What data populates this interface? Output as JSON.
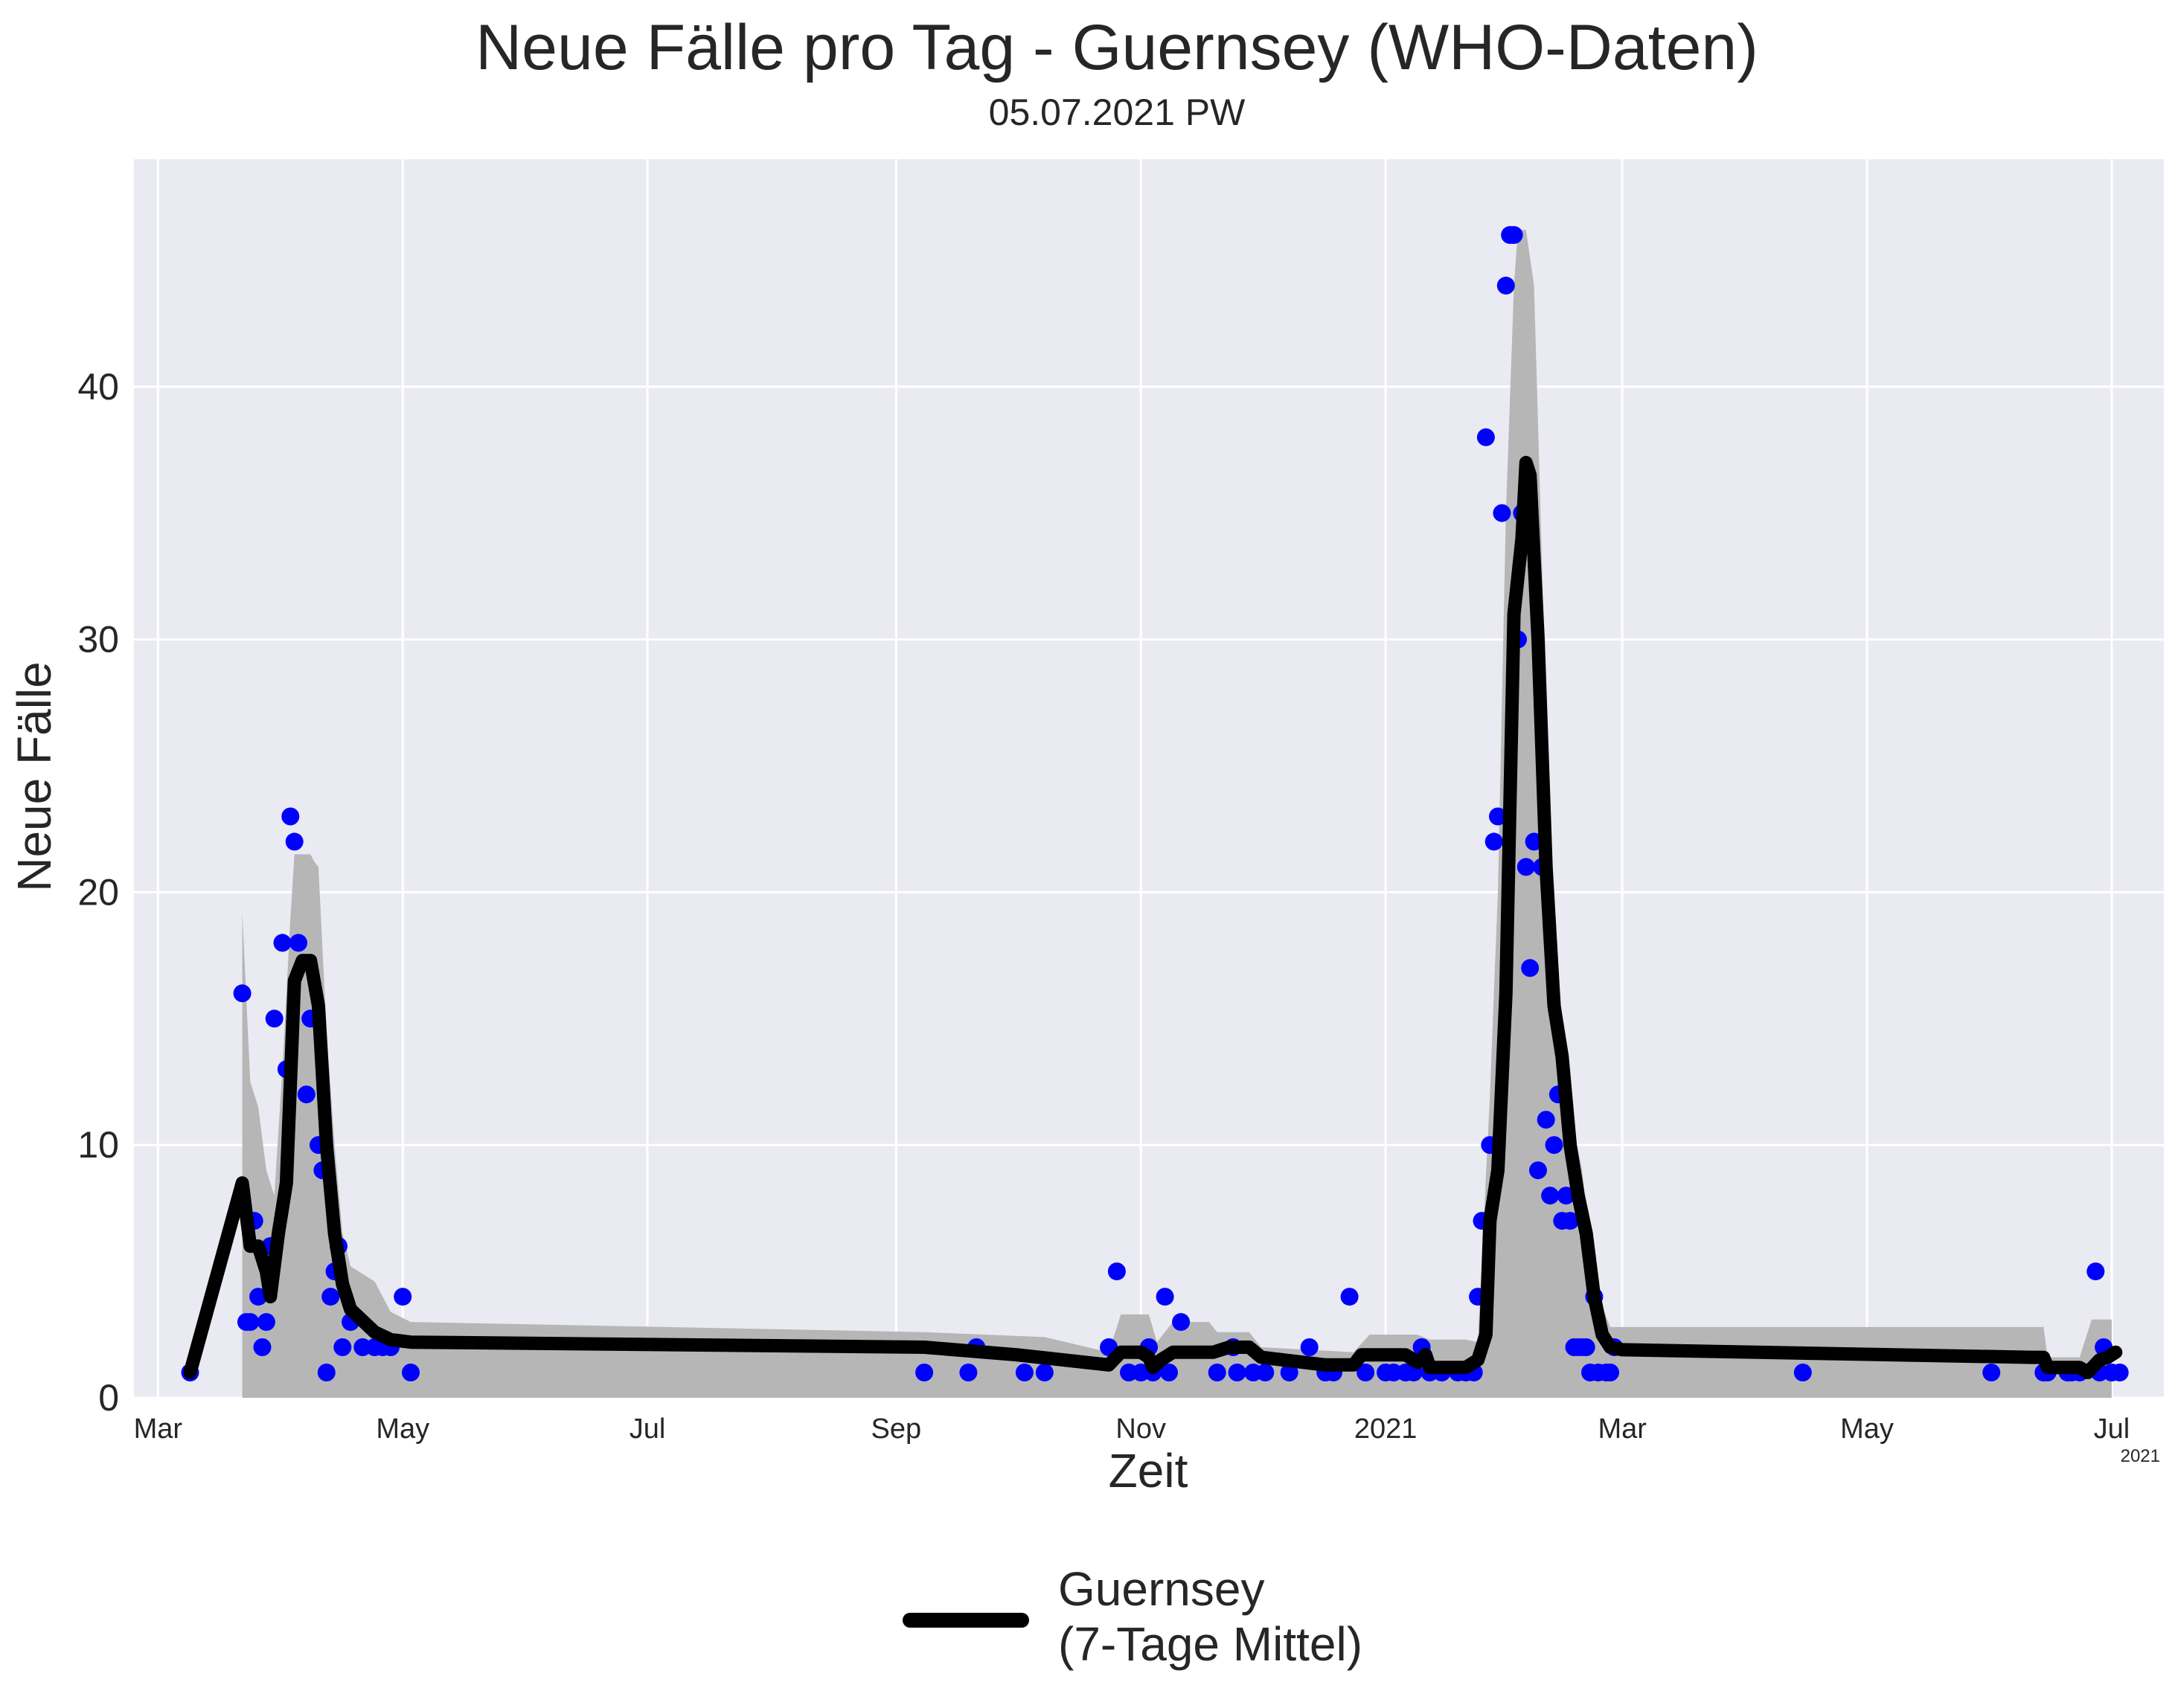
{
  "chart_data": {
    "type": "line",
    "title": "Neue Fälle pro Tag - Guernsey (WHO-Daten)",
    "subtitle": "05.07.2021 PW",
    "xlabel": "Zeit",
    "ylabel": "Neue Fälle",
    "x_offset_label": "2021",
    "xlim": [
      "2020-02-24",
      "2021-07-14"
    ],
    "ylim": [
      0,
      49
    ],
    "grid": true,
    "legend_position": "bottom-center",
    "x_ticks": [
      {
        "date": "2020-03-01",
        "label": "Mar"
      },
      {
        "date": "2020-05-01",
        "label": "May"
      },
      {
        "date": "2020-07-01",
        "label": "Jul"
      },
      {
        "date": "2020-09-01",
        "label": "Sep"
      },
      {
        "date": "2020-11-01",
        "label": "Nov"
      },
      {
        "date": "2021-01-01",
        "label": "2021"
      },
      {
        "date": "2021-03-01",
        "label": "Mar"
      },
      {
        "date": "2021-05-01",
        "label": "May"
      },
      {
        "date": "2021-07-01",
        "label": "Jul"
      }
    ],
    "y_ticks": [
      0,
      10,
      20,
      30,
      40
    ],
    "colors": {
      "background": "#eaeaf2",
      "grid": "#ffffff",
      "points": "#0000ff",
      "line": "#000000",
      "band": "#b3b3b3"
    },
    "series": [
      {
        "name": "Guernsey\n(7-Tage Mittel)",
        "kind": "line",
        "points": [
          [
            "2020-03-09",
            1
          ],
          [
            "2020-03-22",
            8.5
          ],
          [
            "2020-03-24",
            6
          ],
          [
            "2020-03-26",
            6
          ],
          [
            "2020-03-28",
            5
          ],
          [
            "2020-03-29",
            4
          ],
          [
            "2020-03-31",
            6.5
          ],
          [
            "2020-04-02",
            8.5
          ],
          [
            "2020-04-04",
            16.5
          ],
          [
            "2020-04-06",
            17.3
          ],
          [
            "2020-04-08",
            17.3
          ],
          [
            "2020-04-10",
            15.5
          ],
          [
            "2020-04-12",
            10
          ],
          [
            "2020-04-14",
            6.5
          ],
          [
            "2020-04-16",
            4.5
          ],
          [
            "2020-04-18",
            3.5
          ],
          [
            "2020-04-20",
            3.2
          ],
          [
            "2020-04-24",
            2.6
          ],
          [
            "2020-04-28",
            2.3
          ],
          [
            "2020-05-03",
            2.2
          ],
          [
            "2020-09-08",
            2.0
          ],
          [
            "2020-10-01",
            1.7
          ],
          [
            "2020-10-24",
            1.3
          ],
          [
            "2020-10-27",
            1.8
          ],
          [
            "2020-11-01",
            1.8
          ],
          [
            "2020-11-03",
            1.6
          ],
          [
            "2020-11-04",
            1.2
          ],
          [
            "2020-11-06",
            1.5
          ],
          [
            "2020-11-09",
            1.8
          ],
          [
            "2020-11-19",
            1.8
          ],
          [
            "2020-11-23",
            2.0
          ],
          [
            "2020-11-28",
            2.0
          ],
          [
            "2020-12-01",
            1.6
          ],
          [
            "2020-12-17",
            1.3
          ],
          [
            "2020-12-24",
            1.3
          ],
          [
            "2020-12-26",
            1.7
          ],
          [
            "2021-01-06",
            1.7
          ],
          [
            "2021-01-09",
            1.4
          ],
          [
            "2021-01-11",
            1.7
          ],
          [
            "2021-01-12",
            1.2
          ],
          [
            "2021-01-21",
            1.2
          ],
          [
            "2021-01-24",
            1.5
          ],
          [
            "2021-01-26",
            2.5
          ],
          [
            "2021-01-27",
            7
          ],
          [
            "2021-01-29",
            9
          ],
          [
            "2021-01-31",
            16
          ],
          [
            "2021-02-02",
            31
          ],
          [
            "2021-02-04",
            34
          ],
          [
            "2021-02-05",
            37
          ],
          [
            "2021-02-06",
            36.5
          ],
          [
            "2021-02-08",
            30
          ],
          [
            "2021-02-10",
            21
          ],
          [
            "2021-02-12",
            15.5
          ],
          [
            "2021-02-14",
            13.5
          ],
          [
            "2021-02-16",
            10
          ],
          [
            "2021-02-18",
            8
          ],
          [
            "2021-02-20",
            6.5
          ],
          [
            "2021-02-22",
            4
          ],
          [
            "2021-02-24",
            2.5
          ],
          [
            "2021-02-26",
            2.0
          ],
          [
            "2021-03-01",
            1.9
          ],
          [
            "2021-06-11",
            1.6
          ],
          [
            "2021-06-14",
            1.6
          ],
          [
            "2021-06-15",
            1.2
          ],
          [
            "2021-06-23",
            1.2
          ],
          [
            "2021-06-25",
            1.0
          ],
          [
            "2021-06-28",
            1.5
          ],
          [
            "2021-06-30",
            1.6
          ],
          [
            "2021-07-02",
            1.8
          ]
        ]
      },
      {
        "kind": "scatter",
        "points": [
          [
            "2020-03-09",
            1
          ],
          [
            "2020-03-22",
            16
          ],
          [
            "2020-03-23",
            3
          ],
          [
            "2020-03-24",
            3
          ],
          [
            "2020-03-25",
            7
          ],
          [
            "2020-03-26",
            4
          ],
          [
            "2020-03-27",
            2
          ],
          [
            "2020-03-28",
            3
          ],
          [
            "2020-03-29",
            6
          ],
          [
            "2020-03-30",
            15
          ],
          [
            "2020-04-01",
            18
          ],
          [
            "2020-04-02",
            13
          ],
          [
            "2020-04-03",
            23
          ],
          [
            "2020-04-04",
            22
          ],
          [
            "2020-04-05",
            18
          ],
          [
            "2020-04-07",
            12
          ],
          [
            "2020-04-08",
            15
          ],
          [
            "2020-04-10",
            10
          ],
          [
            "2020-04-11",
            9
          ],
          [
            "2020-04-12",
            1
          ],
          [
            "2020-04-13",
            4
          ],
          [
            "2020-04-14",
            5
          ],
          [
            "2020-04-15",
            6
          ],
          [
            "2020-04-16",
            2
          ],
          [
            "2020-04-18",
            3
          ],
          [
            "2020-04-21",
            2
          ],
          [
            "2020-04-24",
            2
          ],
          [
            "2020-04-26",
            2
          ],
          [
            "2020-04-28",
            2
          ],
          [
            "2020-05-01",
            4
          ],
          [
            "2020-05-03",
            1
          ],
          [
            "2020-09-08",
            1
          ],
          [
            "2020-09-19",
            1
          ],
          [
            "2020-09-21",
            2
          ],
          [
            "2020-10-03",
            1
          ],
          [
            "2020-10-08",
            1
          ],
          [
            "2020-10-24",
            2
          ],
          [
            "2020-10-26",
            5
          ],
          [
            "2020-10-29",
            1
          ],
          [
            "2020-11-01",
            1
          ],
          [
            "2020-11-03",
            2
          ],
          [
            "2020-11-04",
            1
          ],
          [
            "2020-11-07",
            4
          ],
          [
            "2020-11-08",
            1
          ],
          [
            "2020-11-11",
            3
          ],
          [
            "2020-11-20",
            1
          ],
          [
            "2020-11-24",
            2
          ],
          [
            "2020-11-25",
            1
          ],
          [
            "2020-11-29",
            1
          ],
          [
            "2020-12-02",
            1
          ],
          [
            "2020-12-08",
            1
          ],
          [
            "2020-12-13",
            2
          ],
          [
            "2020-12-17",
            1
          ],
          [
            "2020-12-19",
            1
          ],
          [
            "2020-12-23",
            4
          ],
          [
            "2020-12-27",
            1
          ],
          [
            "2021-01-01",
            1
          ],
          [
            "2021-01-03",
            1
          ],
          [
            "2021-01-06",
            1
          ],
          [
            "2021-01-08",
            1
          ],
          [
            "2021-01-10",
            2
          ],
          [
            "2021-01-12",
            1
          ],
          [
            "2021-01-15",
            1
          ],
          [
            "2021-01-19",
            1
          ],
          [
            "2021-01-21",
            1
          ],
          [
            "2021-01-23",
            1
          ],
          [
            "2021-01-24",
            4
          ],
          [
            "2021-01-25",
            7
          ],
          [
            "2021-01-26",
            38
          ],
          [
            "2021-01-27",
            10
          ],
          [
            "2021-01-28",
            22
          ],
          [
            "2021-01-29",
            23
          ],
          [
            "2021-01-30",
            35
          ],
          [
            "2021-01-31",
            44
          ],
          [
            "2021-02-01",
            46
          ],
          [
            "2021-02-02",
            46
          ],
          [
            "2021-02-03",
            30
          ],
          [
            "2021-02-04",
            35
          ],
          [
            "2021-02-05",
            21
          ],
          [
            "2021-02-06",
            17
          ],
          [
            "2021-02-07",
            22
          ],
          [
            "2021-02-08",
            9
          ],
          [
            "2021-02-09",
            21
          ],
          [
            "2021-02-10",
            11
          ],
          [
            "2021-02-11",
            8
          ],
          [
            "2021-02-12",
            10
          ],
          [
            "2021-02-13",
            12
          ],
          [
            "2021-02-14",
            7
          ],
          [
            "2021-02-15",
            8
          ],
          [
            "2021-02-16",
            7
          ],
          [
            "2021-02-17",
            2
          ],
          [
            "2021-02-18",
            2
          ],
          [
            "2021-02-19",
            2
          ],
          [
            "2021-02-20",
            2
          ],
          [
            "2021-02-21",
            1
          ],
          [
            "2021-02-22",
            4
          ],
          [
            "2021-02-23",
            1
          ],
          [
            "2021-02-25",
            1
          ],
          [
            "2021-02-26",
            1
          ],
          [
            "2021-02-27",
            2
          ],
          [
            "2021-04-15",
            1
          ],
          [
            "2021-06-01",
            1
          ],
          [
            "2021-06-14",
            1
          ],
          [
            "2021-06-15",
            1
          ],
          [
            "2021-06-20",
            1
          ],
          [
            "2021-06-21",
            1
          ],
          [
            "2021-06-23",
            1
          ],
          [
            "2021-06-27",
            5
          ],
          [
            "2021-06-28",
            1
          ],
          [
            "2021-06-29",
            2
          ],
          [
            "2021-07-01",
            1
          ],
          [
            "2021-07-03",
            1
          ]
        ]
      },
      {
        "kind": "band",
        "upper": [
          [
            "2020-03-22",
            19.2
          ],
          [
            "2020-03-24",
            12.5
          ],
          [
            "2020-03-26",
            11.5
          ],
          [
            "2020-03-28",
            9
          ],
          [
            "2020-03-30",
            8
          ],
          [
            "2020-04-01",
            13
          ],
          [
            "2020-04-03",
            19
          ],
          [
            "2020-04-04",
            21.5
          ],
          [
            "2020-04-08",
            21.5
          ],
          [
            "2020-04-09",
            21.2
          ],
          [
            "2020-04-10",
            21
          ],
          [
            "2020-04-12",
            14.5
          ],
          [
            "2020-04-14",
            10
          ],
          [
            "2020-04-16",
            6.5
          ],
          [
            "2020-04-18",
            5.2
          ],
          [
            "2020-04-20",
            5
          ],
          [
            "2020-04-24",
            4.6
          ],
          [
            "2020-04-28",
            3.4
          ],
          [
            "2020-05-03",
            3.0
          ],
          [
            "2020-09-08",
            2.6
          ],
          [
            "2020-10-08",
            2.4
          ],
          [
            "2020-10-24",
            1.8
          ],
          [
            "2020-10-27",
            3.3
          ],
          [
            "2020-11-03",
            3.3
          ],
          [
            "2020-11-05",
            2.2
          ],
          [
            "2020-11-09",
            3.0
          ],
          [
            "2020-11-18",
            3.0
          ],
          [
            "2020-11-20",
            2.6
          ],
          [
            "2020-11-28",
            2.6
          ],
          [
            "2020-12-01",
            2.0
          ],
          [
            "2020-12-24",
            1.8
          ],
          [
            "2020-12-28",
            2.5
          ],
          [
            "2021-01-09",
            2.5
          ],
          [
            "2021-01-12",
            2.3
          ],
          [
            "2021-01-21",
            2.3
          ],
          [
            "2021-01-24",
            2.2
          ],
          [
            "2021-01-27",
            12
          ],
          [
            "2021-01-29",
            20
          ],
          [
            "2021-01-31",
            35
          ],
          [
            "2021-02-02",
            44
          ],
          [
            "2021-02-03",
            46.2
          ],
          [
            "2021-02-05",
            46.2
          ],
          [
            "2021-02-07",
            44
          ],
          [
            "2021-02-09",
            33
          ],
          [
            "2021-02-11",
            21.5
          ],
          [
            "2021-02-13",
            17
          ],
          [
            "2021-02-15",
            13
          ],
          [
            "2021-02-17",
            10.5
          ],
          [
            "2021-02-19",
            9
          ],
          [
            "2021-02-21",
            6
          ],
          [
            "2021-02-23",
            4
          ],
          [
            "2021-02-26",
            2.8
          ],
          [
            "2021-03-01",
            2.8
          ],
          [
            "2021-06-14",
            2.8
          ],
          [
            "2021-06-15",
            1.6
          ],
          [
            "2021-06-23",
            1.6
          ],
          [
            "2021-06-26",
            3.1
          ],
          [
            "2021-07-01",
            3.1
          ]
        ],
        "lower": [
          [
            "2020-07-01",
            0
          ],
          [
            "2021-07-01",
            0
          ]
        ]
      }
    ]
  }
}
